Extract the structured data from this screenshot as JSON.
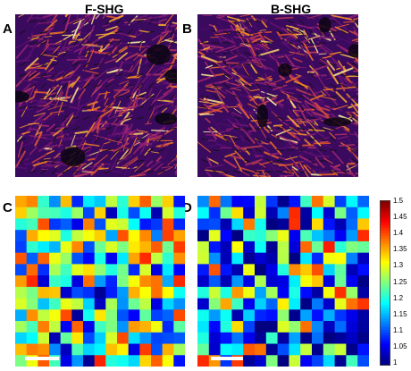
{
  "figure": {
    "panels": [
      {
        "label": "A",
        "title": "F-SHG",
        "kind": "shg-image"
      },
      {
        "label": "B",
        "title": "B-SHG",
        "kind": "shg-image"
      },
      {
        "label": "C",
        "kind": "heatmap"
      },
      {
        "label": "D",
        "kind": "heatmap"
      }
    ],
    "colorbar": {
      "ticks": [
        "1.5",
        "1.45",
        "1.4",
        "1.35",
        "1.3",
        "1.25",
        "1.2",
        "1.15",
        "1.1",
        "1.05",
        "1"
      ],
      "range": [
        1,
        1.5
      ],
      "colormap": "jet"
    },
    "image_colormap": "inferno-like (black-purple-orange-yellow)",
    "colors": {
      "background": "#ffffff",
      "scalebar": "#ffffff"
    }
  }
}
